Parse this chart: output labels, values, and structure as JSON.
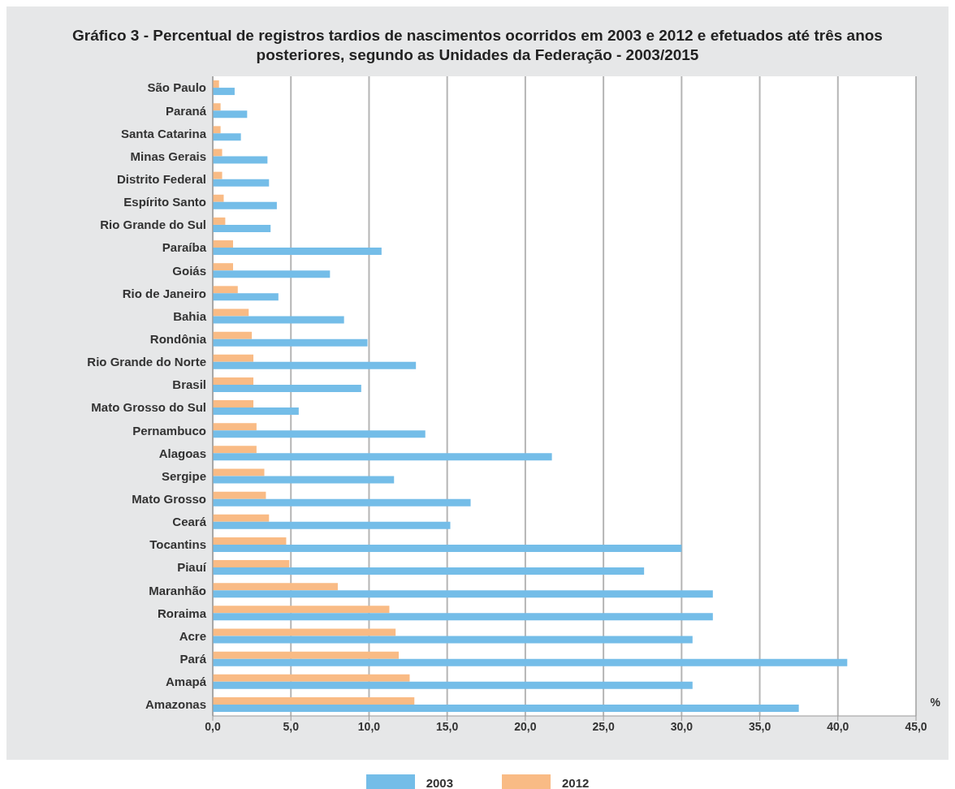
{
  "chart_data": {
    "type": "bar",
    "orientation": "horizontal",
    "title": "Gráfico 3 - Percentual de registros tardios de nascimentos ocorridos em 2003 e 2012 e efetuados até três anos posteriores, segundo as Unidades da Federação - 2003/2015",
    "xlabel": "%",
    "categories": [
      "São Paulo",
      "Paraná",
      "Santa Catarina",
      "Minas Gerais",
      "Distrito Federal",
      "Espírito Santo",
      "Rio Grande do Sul",
      "Paraíba",
      "Goiás",
      "Rio de Janeiro",
      "Bahia",
      "Rondônia",
      "Rio Grande do Norte",
      "Brasil",
      "Mato Grosso do Sul",
      "Pernambuco",
      "Alagoas",
      "Sergipe",
      "Mato Grosso",
      "Ceará",
      "Tocantins",
      "Piauí",
      "Maranhão",
      "Roraima",
      "Acre",
      "Pará",
      "Amapá",
      "Amazonas"
    ],
    "series": [
      {
        "name": "2003",
        "color": "#74bde8",
        "values": [
          1.4,
          2.2,
          1.8,
          3.5,
          3.6,
          4.1,
          3.7,
          10.8,
          7.5,
          4.2,
          8.4,
          9.9,
          13.0,
          9.5,
          5.5,
          13.6,
          21.7,
          11.6,
          16.5,
          15.2,
          30.0,
          27.6,
          32.0,
          32.0,
          30.7,
          40.6,
          30.7,
          37.5
        ]
      },
      {
        "name": "2012",
        "color": "#f9bb85",
        "values": [
          0.4,
          0.5,
          0.5,
          0.6,
          0.6,
          0.7,
          0.8,
          1.3,
          1.3,
          1.6,
          2.3,
          2.5,
          2.6,
          2.6,
          2.6,
          2.8,
          2.8,
          3.3,
          3.4,
          3.6,
          4.7,
          4.9,
          8.0,
          11.3,
          11.7,
          11.9,
          12.6,
          12.9
        ]
      }
    ],
    "xlim": [
      0,
      45
    ],
    "xticks": [
      {
        "value": 0,
        "label": "0,0"
      },
      {
        "value": 5,
        "label": "5,0"
      },
      {
        "value": 10,
        "label": "10,0"
      },
      {
        "value": 15,
        "label": "15,0"
      },
      {
        "value": 20,
        "label": "20,0"
      },
      {
        "value": 25,
        "label": "25,0"
      },
      {
        "value": 30,
        "label": "30,0"
      },
      {
        "value": 35,
        "label": "35,0"
      },
      {
        "value": 40,
        "label": "40,0"
      },
      {
        "value": 45,
        "label": "45,0"
      }
    ],
    "grid": "x",
    "legend": "bottom"
  }
}
